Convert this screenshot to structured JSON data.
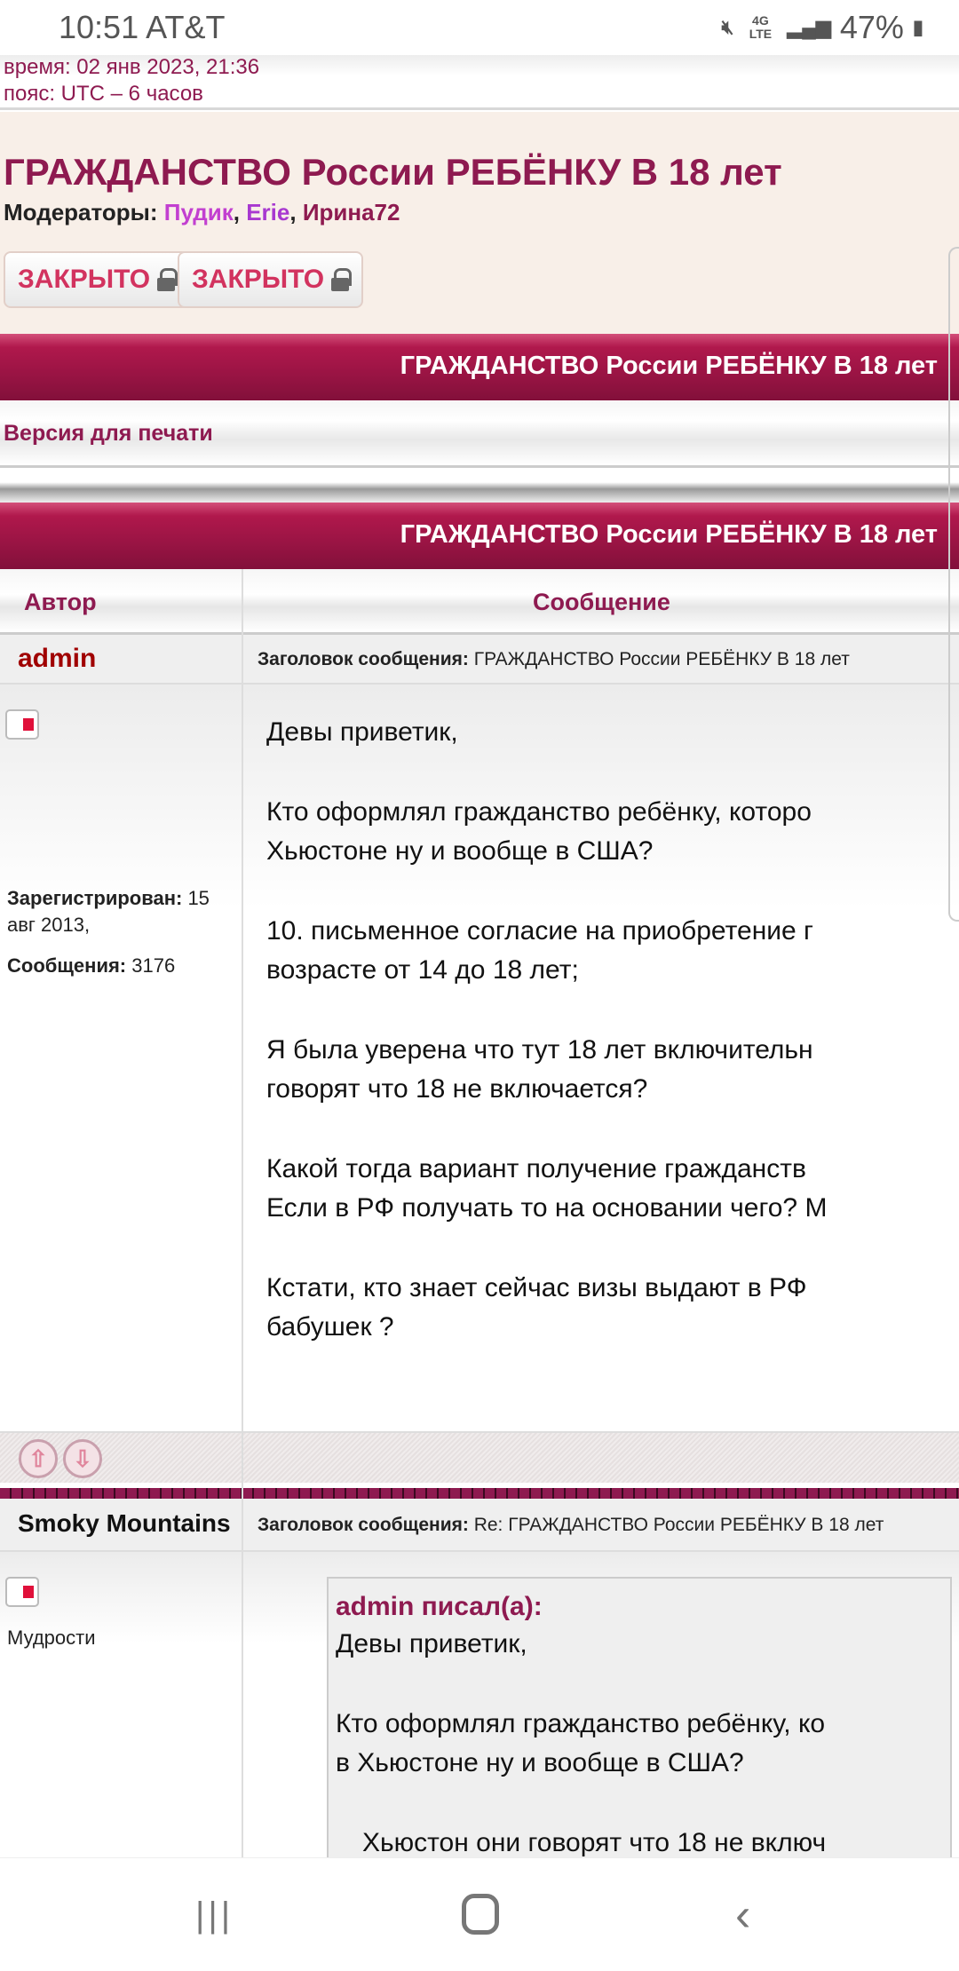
{
  "status_bar": {
    "time": "10:51",
    "carrier": "AT&T",
    "network": "4G LTE",
    "battery": "47%",
    "icons": [
      "mute-icon",
      "lte-icon",
      "signal-icon",
      "battery-charging-icon"
    ]
  },
  "top_strip": {
    "time_line": "время: 02 янв 2023, 21:36",
    "timezone_line": "пояс: UTC – 6 часов"
  },
  "topic": {
    "title": "ГРАЖДАНСТВО России РЕБЁНКУ В 18 лет",
    "moderators_label": "Модераторы:",
    "moderators": [
      "Пудик",
      "Erie",
      "Ирина72"
    ],
    "buttons": [
      {
        "label": "ЗАКРЫТО",
        "icon": "lock-icon"
      },
      {
        "label": "ЗАКРЫТО",
        "icon": "lock-icon"
      }
    ]
  },
  "bar_title": "ГРАЖДАНСТВО России РЕБЁНКУ В 18 лет",
  "print_link": "Версия для печати",
  "table_header": {
    "author": "Автор",
    "message": "Сообщение"
  },
  "posts": [
    {
      "author": "admin",
      "author_color": "#a00000",
      "subject_label": "Заголовок сообщения:",
      "subject": "ГРАЖДАНСТВО России РЕБЁНКУ В 18 лет",
      "registered_label": "Зарегистрирован:",
      "registered": "15 авг 2013,",
      "posts_label": "Сообщения:",
      "posts_count": "3176",
      "lines": [
        "Девы приветик,",
        "Кто оформлял гражданство ребёнку, которо",
        "Хьюстоне ну и вообще в США?",
        "10. письменное согласие на приобретение г",
        "возрасте от 14 до 18 лет;",
        "Я была уверена что тут 18 лет включительн",
        "говорят что 18 не включается?",
        "Какой тогда вариант получение гражданств",
        "Если в РФ получать то на основании чего? М",
        "Кстати, кто знает сейчас визы выдают в РФ",
        "бабушек ?"
      ]
    },
    {
      "author": "Smoky Mountains",
      "subject_label": "Заголовок сообщения:",
      "subject": "Re: ГРАЖДАНСТВО России РЕБЁНКУ В 18 лет",
      "rank": "Мудрости",
      "quote_author": "admin писал(а):",
      "quote_lines": [
        "Девы приветик,",
        "Кто оформлял гражданство ребёнку, ко",
        "в Хьюстоне ну и вообще в США?",
        "Хьюстон они говорят что 18 не включ"
      ]
    }
  ],
  "colors": {
    "accent": "#9a1444",
    "link": "#8e1a50",
    "beige": "#f8efe8"
  }
}
